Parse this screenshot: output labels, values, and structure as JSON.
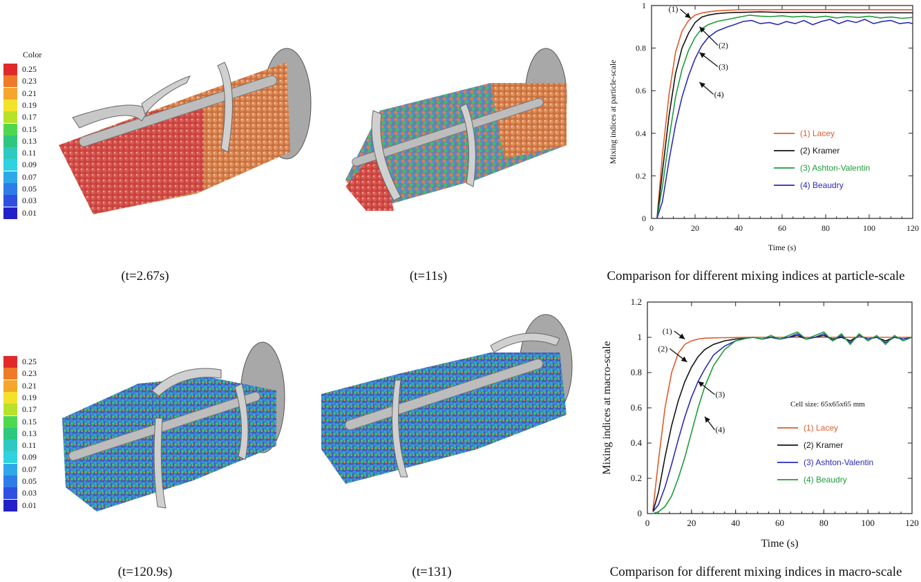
{
  "colorbar": {
    "title": "Color",
    "levels": [
      "0.25",
      "0.23",
      "0.21",
      "0.19",
      "0.17",
      "0.15",
      "0.13",
      "0.11",
      "0.09",
      "0.07",
      "0.05",
      "0.03",
      "0.01"
    ],
    "colors": [
      "#e02a2a",
      "#ee7a2a",
      "#f4a72a",
      "#f4e22a",
      "#b8e22a",
      "#4fd84f",
      "#2ec77f",
      "#2ecac2",
      "#2ed2e0",
      "#2ea8e8",
      "#2e7ce8",
      "#2e4fe0",
      "#2420c8"
    ]
  },
  "captions": {
    "top_left": "(t=2.67s)",
    "top_mid": "(t=11s)",
    "top_right": "Comparison for different mixing indices at particle-scale",
    "bottom_left": "(t=120.9s)",
    "bottom_mid": "(t=131)",
    "bottom_right": "Comparison for different mixing indices in macro-scale"
  },
  "chart_data": [
    {
      "type": "line",
      "xlabel": "Time (s)",
      "ylabel": "Mixing indices at particle-scale",
      "xlim": [
        0,
        120
      ],
      "ylim": [
        0,
        1
      ],
      "xticks": [
        0,
        20,
        40,
        60,
        80,
        100,
        120
      ],
      "yticks": [
        0,
        0.2,
        0.4,
        0.6,
        0.8,
        1
      ],
      "ytick_labels": [
        "0",
        "0.2",
        "0.4",
        "0.6",
        "0.8",
        "1"
      ],
      "series": [
        {
          "name": "(1) Lacey",
          "color": "#e05a2a",
          "x": [
            2.5,
            5,
            8,
            11,
            14,
            17,
            20,
            23,
            26,
            30,
            35,
            40,
            50,
            60,
            70,
            80,
            90,
            100,
            110,
            120
          ],
          "y": [
            0,
            0.3,
            0.58,
            0.78,
            0.88,
            0.93,
            0.955,
            0.965,
            0.97,
            0.975,
            0.978,
            0.98,
            0.98,
            0.98,
            0.98,
            0.98,
            0.98,
            0.98,
            0.98,
            0.98
          ]
        },
        {
          "name": "(2) Kramer",
          "color": "#111111",
          "x": [
            2.5,
            5,
            8,
            11,
            14,
            17,
            20,
            23,
            26,
            30,
            35,
            40,
            50,
            60,
            70,
            80,
            90,
            100,
            110,
            120
          ],
          "y": [
            0,
            0.22,
            0.48,
            0.68,
            0.8,
            0.87,
            0.92,
            0.945,
            0.955,
            0.962,
            0.966,
            0.968,
            0.97,
            0.968,
            0.968,
            0.968,
            0.966,
            0.966,
            0.966,
            0.966
          ]
        },
        {
          "name": "(3) Ashton-Valentin",
          "color": "#1e9a3a",
          "x": [
            2.5,
            5,
            8,
            11,
            14,
            17,
            20,
            23,
            26,
            30,
            35,
            40,
            45,
            50,
            55,
            60,
            65,
            70,
            75,
            80,
            85,
            90,
            95,
            100,
            105,
            110,
            115,
            120
          ],
          "y": [
            0,
            0.15,
            0.37,
            0.57,
            0.7,
            0.79,
            0.85,
            0.89,
            0.91,
            0.925,
            0.935,
            0.945,
            0.955,
            0.95,
            0.948,
            0.952,
            0.946,
            0.95,
            0.944,
            0.95,
            0.942,
            0.948,
            0.944,
            0.95,
            0.942,
            0.946,
            0.94,
            0.944
          ]
        },
        {
          "name": "(4) Beaudry",
          "color": "#2a2ab8",
          "x": [
            2.5,
            5,
            8,
            11,
            14,
            17,
            20,
            23,
            26,
            30,
            35,
            38,
            42,
            46,
            50,
            54,
            58,
            62,
            66,
            70,
            74,
            78,
            82,
            86,
            90,
            94,
            98,
            102,
            106,
            110,
            114,
            118,
            120
          ],
          "y": [
            0,
            0.08,
            0.27,
            0.44,
            0.57,
            0.67,
            0.75,
            0.81,
            0.85,
            0.88,
            0.9,
            0.91,
            0.925,
            0.93,
            0.915,
            0.92,
            0.91,
            0.925,
            0.915,
            0.93,
            0.91,
            0.925,
            0.935,
            0.915,
            0.93,
            0.92,
            0.935,
            0.915,
            0.925,
            0.93,
            0.915,
            0.92,
            0.915
          ]
        }
      ],
      "annotations": [
        {
          "text": "(1)",
          "x": 10,
          "y": 0.97,
          "target_x": 18,
          "target_y": 0.94
        },
        {
          "text": "(2)",
          "x": 33,
          "y": 0.8,
          "target_x": 22,
          "target_y": 0.9
        },
        {
          "text": "(3)",
          "x": 33,
          "y": 0.7,
          "target_x": 22,
          "target_y": 0.78
        },
        {
          "text": "(4)",
          "x": 31,
          "y": 0.57,
          "target_x": 22,
          "target_y": 0.64
        }
      ]
    },
    {
      "type": "line",
      "xlabel": "Time (s)",
      "ylabel": "Mixing indices at macro-scale",
      "xlim": [
        0,
        120
      ],
      "ylim": [
        0,
        1.2
      ],
      "xticks": [
        0,
        20,
        40,
        60,
        80,
        100,
        120
      ],
      "yticks": [
        0,
        0.2,
        0.4,
        0.6,
        0.8,
        1,
        1.2
      ],
      "ytick_labels": [
        "0",
        "0.2",
        "0.4",
        "0.6",
        "0.8",
        "1",
        "1.2"
      ],
      "annotation_text": "Cell size: 65x65x65 mm",
      "series": [
        {
          "name": "(1) Lacey",
          "color": "#e05a2a",
          "x": [
            2.5,
            5,
            8,
            11,
            14,
            17,
            20,
            23,
            26,
            30,
            35,
            40,
            45,
            50,
            60,
            70,
            80,
            90,
            100,
            110,
            120
          ],
          "y": [
            0.02,
            0.3,
            0.6,
            0.8,
            0.91,
            0.96,
            0.98,
            0.99,
            0.995,
            0.997,
            0.998,
            0.999,
            1,
            1,
            1,
            1,
            1,
            1,
            1,
            1,
            1
          ]
        },
        {
          "name": "(2) Kramer",
          "color": "#111111",
          "x": [
            2.5,
            5,
            8,
            11,
            14,
            17,
            20,
            23,
            26,
            30,
            35,
            40,
            45,
            48,
            52,
            56,
            60,
            64,
            68,
            72,
            76,
            80,
            84,
            88,
            92,
            96,
            100,
            104,
            108,
            112,
            116,
            120
          ],
          "y": [
            0.01,
            0.12,
            0.32,
            0.5,
            0.64,
            0.75,
            0.83,
            0.89,
            0.93,
            0.96,
            0.98,
            0.99,
            0.995,
            1,
            0.99,
            1.0,
            0.99,
            1.0,
            1.01,
            0.99,
            1.0,
            1.01,
            0.99,
            1.0,
            0.98,
            1.01,
            0.99,
            1.0,
            0.98,
            1.0,
            0.99,
            1.0
          ]
        },
        {
          "name": "(3) Ashton-Valentin",
          "color": "#2a2ab8",
          "x": [
            2.5,
            5,
            8,
            11,
            14,
            17,
            20,
            23,
            26,
            30,
            35,
            40,
            45,
            48,
            52,
            56,
            60,
            64,
            68,
            72,
            76,
            80,
            84,
            88,
            92,
            96,
            100,
            104,
            108,
            112,
            116,
            120
          ],
          "y": [
            0.01,
            0.05,
            0.15,
            0.28,
            0.42,
            0.55,
            0.66,
            0.75,
            0.82,
            0.9,
            0.95,
            0.98,
            0.995,
            1,
            0.99,
            1.0,
            0.99,
            1.0,
            1.02,
            0.99,
            1.0,
            1.02,
            0.98,
            1.01,
            0.97,
            1.01,
            0.99,
            1.0,
            0.97,
            1.0,
            0.99,
            1.0
          ]
        },
        {
          "name": "(4) Beaudry",
          "color": "#1e9a3a",
          "x": [
            2.5,
            5,
            8,
            11,
            14,
            17,
            20,
            23,
            26,
            30,
            35,
            40,
            45,
            48,
            52,
            56,
            60,
            64,
            68,
            72,
            76,
            80,
            84,
            88,
            92,
            96,
            100,
            104,
            108,
            112,
            116,
            120
          ],
          "y": [
            0,
            0.01,
            0.04,
            0.1,
            0.2,
            0.32,
            0.46,
            0.6,
            0.72,
            0.84,
            0.93,
            0.98,
            0.995,
            1,
            0.99,
            1.01,
            0.99,
            1.01,
            1.03,
            0.99,
            1.01,
            1.03,
            0.98,
            1.02,
            0.96,
            1.02,
            0.98,
            1.01,
            0.96,
            1.01,
            0.98,
            1.0
          ]
        }
      ],
      "annotations": [
        {
          "text": "(1)",
          "x": 9,
          "y": 1.02,
          "target_x": 17,
          "target_y": 0.99
        },
        {
          "text": "(2)",
          "x": 7,
          "y": 0.92,
          "target_x": 18,
          "target_y": 0.86
        },
        {
          "text": "(3)",
          "x": 33,
          "y": 0.66,
          "target_x": 23,
          "target_y": 0.75
        },
        {
          "text": "(4)",
          "x": 33,
          "y": 0.46,
          "target_x": 26,
          "target_y": 0.55
        }
      ]
    }
  ]
}
